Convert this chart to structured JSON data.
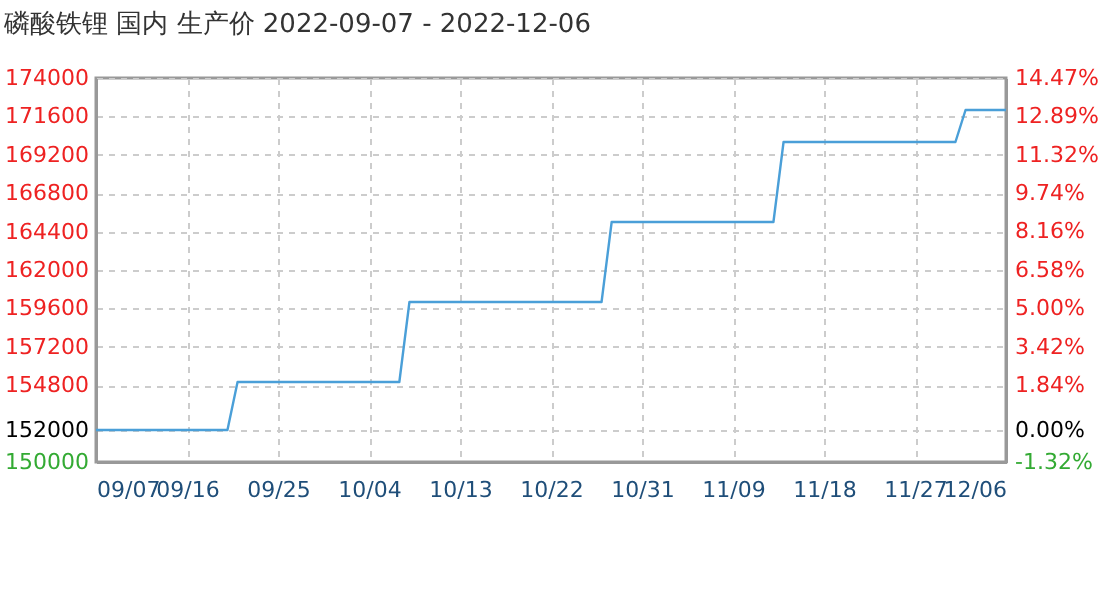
{
  "chart_data": {
    "type": "line",
    "title": "磷酸铁锂 国内 生产价 2022-09-07 - 2022-12-06",
    "series": [
      {
        "color": "#4a9fd8",
        "x": [
          "2022-09-07",
          "2022-09-20",
          "2022-09-21",
          "2022-10-07",
          "2022-10-08",
          "2022-10-27",
          "2022-10-28",
          "2022-11-13",
          "2022-11-14",
          "2022-12-01",
          "2022-12-02",
          "2022-12-06"
        ],
        "values": [
          152000,
          152000,
          155000,
          155000,
          160000,
          160000,
          165000,
          165000,
          170000,
          170000,
          172000,
          172000
        ]
      }
    ],
    "xlim": [
      "2022-09-07",
      "2022-12-06"
    ],
    "xticks": [
      {
        "value": "2022-09-07",
        "label": "09/07"
      },
      {
        "value": "2022-09-16",
        "label": "09/16"
      },
      {
        "value": "2022-09-25",
        "label": "09/25"
      },
      {
        "value": "2022-10-04",
        "label": "10/04"
      },
      {
        "value": "2022-10-13",
        "label": "10/13"
      },
      {
        "value": "2022-10-22",
        "label": "10/22"
      },
      {
        "value": "2022-10-31",
        "label": "10/31"
      },
      {
        "value": "2022-11-09",
        "label": "11/09"
      },
      {
        "value": "2022-11-18",
        "label": "11/18"
      },
      {
        "value": "2022-11-27",
        "label": "11/27"
      },
      {
        "value": "2022-12-06",
        "label": "12/06"
      }
    ],
    "ylim": [
      150000,
      174000
    ],
    "yticks": [
      150000,
      152000,
      154800,
      157200,
      159600,
      162000,
      164400,
      166800,
      169200,
      171600,
      174000
    ],
    "y2lim": [
      -1.32,
      14.47
    ],
    "y2ticks": [
      {
        "value": -1.32,
        "label": "-1.32%"
      },
      {
        "value": 0,
        "label": "0.00%"
      },
      {
        "value": 1.84,
        "label": "1.84%"
      },
      {
        "value": 3.42,
        "label": "3.42%"
      },
      {
        "value": 5.0,
        "label": "5.00%"
      },
      {
        "value": 6.58,
        "label": "6.58%"
      },
      {
        "value": 8.16,
        "label": "8.16%"
      },
      {
        "value": 9.74,
        "label": "9.74%"
      },
      {
        "value": 11.32,
        "label": "11.32%"
      },
      {
        "value": 12.89,
        "label": "12.89%"
      },
      {
        "value": 14.47,
        "label": "14.47%"
      }
    ],
    "grid": true,
    "marker": "none",
    "line_style": "solid"
  }
}
